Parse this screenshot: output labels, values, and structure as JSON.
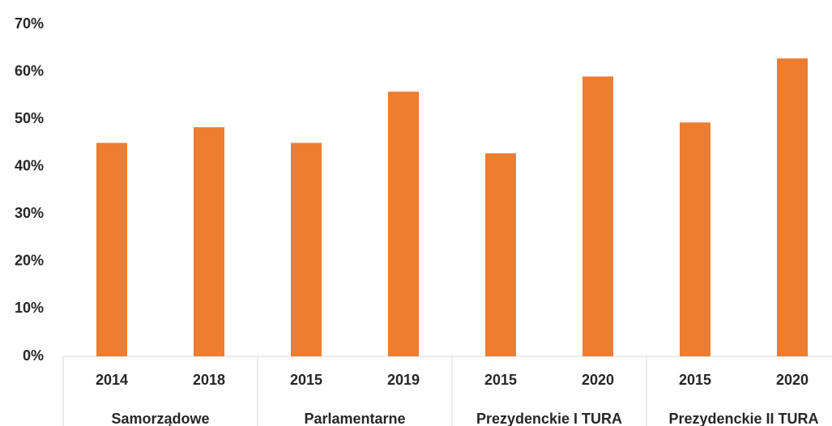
{
  "chart_data": {
    "type": "bar",
    "groups": [
      {
        "name": "Samorządowe",
        "categories": [
          "2014",
          "2018"
        ]
      },
      {
        "name": "Parlamentarne",
        "categories": [
          "2015",
          "2019"
        ]
      },
      {
        "name": "Prezydenckie I TURA",
        "categories": [
          "2015",
          "2020"
        ]
      },
      {
        "name": "Prezydenckie II TURA",
        "categories": [
          "2015",
          "2020"
        ]
      }
    ],
    "values": [
      45,
      48.3,
      45,
      55.8,
      42.8,
      59,
      49.3,
      62.8
    ],
    "color": "#ed7d31",
    "ylim": [
      0,
      70
    ],
    "yticks": [
      {
        "value": 0,
        "label": "0%"
      },
      {
        "value": 10,
        "label": "10%"
      },
      {
        "value": 20,
        "label": "20%"
      },
      {
        "value": 30,
        "label": "30%"
      },
      {
        "value": 40,
        "label": "40%"
      },
      {
        "value": 50,
        "label": "50%"
      },
      {
        "value": 60,
        "label": "60%"
      },
      {
        "value": 70,
        "label": "70%"
      }
    ],
    "grid": false
  }
}
